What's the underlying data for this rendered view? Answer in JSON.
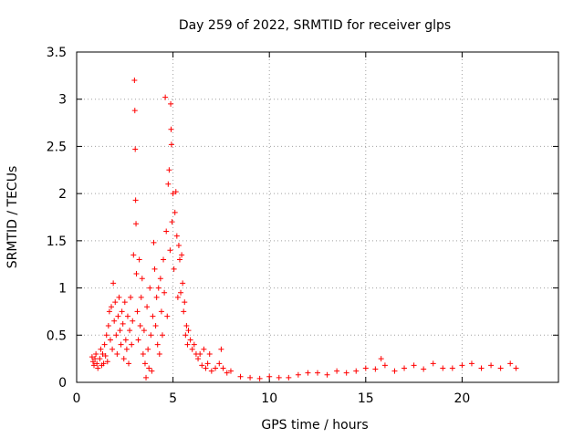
{
  "chart_data": {
    "type": "scatter",
    "title": "Day 259 of 2022, SRMTID for receiver glps",
    "xlabel": "GPS time / hours",
    "ylabel": "SRMTID / TECUs",
    "xlim": [
      0,
      25
    ],
    "ylim": [
      0,
      3.5
    ],
    "x_ticks": [
      0,
      5,
      10,
      15,
      20
    ],
    "x_tick_labels": [
      "0",
      "5",
      "10",
      "15",
      "20"
    ],
    "y_ticks": [
      0,
      0.5,
      1,
      1.5,
      2,
      2.5,
      3,
      3.5
    ],
    "y_tick_labels": [
      "0",
      "0.5",
      "1",
      "1.5",
      "2",
      "2.5",
      "3",
      "3.5"
    ],
    "grid": true,
    "marker": "+",
    "color": "#ff0000",
    "series": [
      {
        "name": "SRMTID",
        "points": [
          [
            0.8,
            0.27
          ],
          [
            0.85,
            0.22
          ],
          [
            0.9,
            0.18
          ],
          [
            0.95,
            0.25
          ],
          [
            1.0,
            0.3
          ],
          [
            1.05,
            0.2
          ],
          [
            1.1,
            0.15
          ],
          [
            1.2,
            0.25
          ],
          [
            1.25,
            0.35
          ],
          [
            1.3,
            0.18
          ],
          [
            1.35,
            0.3
          ],
          [
            1.4,
            0.2
          ],
          [
            1.45,
            0.4
          ],
          [
            1.5,
            0.28
          ],
          [
            1.55,
            0.5
          ],
          [
            1.6,
            0.22
          ],
          [
            1.65,
            0.6
          ],
          [
            1.7,
            0.75
          ],
          [
            1.75,
            0.45
          ],
          [
            1.8,
            0.8
          ],
          [
            1.85,
            0.35
          ],
          [
            1.9,
            1.05
          ],
          [
            1.95,
            0.65
          ],
          [
            2.0,
            0.85
          ],
          [
            2.05,
            0.5
          ],
          [
            2.1,
            0.3
          ],
          [
            2.15,
            0.7
          ],
          [
            2.2,
            0.9
          ],
          [
            2.25,
            0.55
          ],
          [
            2.3,
            0.4
          ],
          [
            2.35,
            0.75
          ],
          [
            2.4,
            0.62
          ],
          [
            2.45,
            0.25
          ],
          [
            2.5,
            0.85
          ],
          [
            2.55,
            0.45
          ],
          [
            2.6,
            0.35
          ],
          [
            2.65,
            0.7
          ],
          [
            2.7,
            0.2
          ],
          [
            2.75,
            0.55
          ],
          [
            2.8,
            0.9
          ],
          [
            2.85,
            0.4
          ],
          [
            2.9,
            0.65
          ],
          [
            2.95,
            1.35
          ],
          [
            3.0,
            3.2
          ],
          [
            3.02,
            2.88
          ],
          [
            3.04,
            2.47
          ],
          [
            3.06,
            1.93
          ],
          [
            3.08,
            1.68
          ],
          [
            3.1,
            1.15
          ],
          [
            3.15,
            0.75
          ],
          [
            3.2,
            0.45
          ],
          [
            3.25,
            1.3
          ],
          [
            3.3,
            0.6
          ],
          [
            3.35,
            0.9
          ],
          [
            3.4,
            1.1
          ],
          [
            3.45,
            0.3
          ],
          [
            3.5,
            0.55
          ],
          [
            3.55,
            0.2
          ],
          [
            3.6,
            0.05
          ],
          [
            3.65,
            0.8
          ],
          [
            3.7,
            0.35
          ],
          [
            3.75,
            0.15
          ],
          [
            3.8,
            1.0
          ],
          [
            3.85,
            0.5
          ],
          [
            3.9,
            0.12
          ],
          [
            3.95,
            0.7
          ],
          [
            4.0,
            1.48
          ],
          [
            4.05,
            1.2
          ],
          [
            4.1,
            0.6
          ],
          [
            4.15,
            0.9
          ],
          [
            4.2,
            0.4
          ],
          [
            4.25,
            1.0
          ],
          [
            4.3,
            0.3
          ],
          [
            4.35,
            1.1
          ],
          [
            4.4,
            0.75
          ],
          [
            4.45,
            0.5
          ],
          [
            4.5,
            1.3
          ],
          [
            4.55,
            0.95
          ],
          [
            4.6,
            3.02
          ],
          [
            4.65,
            1.6
          ],
          [
            4.7,
            0.7
          ],
          [
            4.75,
            2.1
          ],
          [
            4.8,
            2.25
          ],
          [
            4.85,
            1.4
          ],
          [
            4.88,
            2.95
          ],
          [
            4.9,
            2.68
          ],
          [
            4.92,
            2.52
          ],
          [
            4.95,
            1.7
          ],
          [
            5.0,
            2.0
          ],
          [
            5.05,
            1.2
          ],
          [
            5.1,
            1.8
          ],
          [
            5.15,
            2.02
          ],
          [
            5.2,
            1.55
          ],
          [
            5.25,
            0.9
          ],
          [
            5.3,
            1.45
          ],
          [
            5.35,
            1.3
          ],
          [
            5.4,
            0.95
          ],
          [
            5.45,
            1.35
          ],
          [
            5.5,
            1.05
          ],
          [
            5.55,
            0.75
          ],
          [
            5.6,
            0.85
          ],
          [
            5.65,
            0.5
          ],
          [
            5.7,
            0.6
          ],
          [
            5.75,
            0.4
          ],
          [
            5.8,
            0.55
          ],
          [
            5.9,
            0.45
          ],
          [
            6.0,
            0.35
          ],
          [
            6.1,
            0.4
          ],
          [
            6.2,
            0.3
          ],
          [
            6.3,
            0.25
          ],
          [
            6.4,
            0.3
          ],
          [
            6.5,
            0.18
          ],
          [
            6.6,
            0.35
          ],
          [
            6.7,
            0.15
          ],
          [
            6.8,
            0.2
          ],
          [
            6.9,
            0.3
          ],
          [
            7.0,
            0.12
          ],
          [
            7.2,
            0.15
          ],
          [
            7.4,
            0.2
          ],
          [
            7.5,
            0.35
          ],
          [
            7.6,
            0.15
          ],
          [
            7.8,
            0.1
          ],
          [
            8.0,
            0.12
          ],
          [
            8.5,
            0.06
          ],
          [
            9.0,
            0.05
          ],
          [
            9.5,
            0.04
          ],
          [
            10.0,
            0.06
          ],
          [
            10.5,
            0.05
          ],
          [
            11.0,
            0.05
          ],
          [
            11.5,
            0.08
          ],
          [
            12.0,
            0.1
          ],
          [
            12.5,
            0.1
          ],
          [
            13.0,
            0.08
          ],
          [
            13.5,
            0.12
          ],
          [
            14.0,
            0.1
          ],
          [
            14.5,
            0.12
          ],
          [
            15.0,
            0.15
          ],
          [
            15.5,
            0.14
          ],
          [
            15.8,
            0.25
          ],
          [
            16.0,
            0.18
          ],
          [
            16.5,
            0.12
          ],
          [
            17.0,
            0.15
          ],
          [
            17.5,
            0.18
          ],
          [
            18.0,
            0.14
          ],
          [
            18.5,
            0.2
          ],
          [
            19.0,
            0.15
          ],
          [
            19.5,
            0.15
          ],
          [
            20.0,
            0.18
          ],
          [
            20.5,
            0.2
          ],
          [
            21.0,
            0.15
          ],
          [
            21.5,
            0.18
          ],
          [
            22.0,
            0.15
          ],
          [
            22.5,
            0.2
          ],
          [
            22.8,
            0.15
          ]
        ]
      }
    ]
  }
}
